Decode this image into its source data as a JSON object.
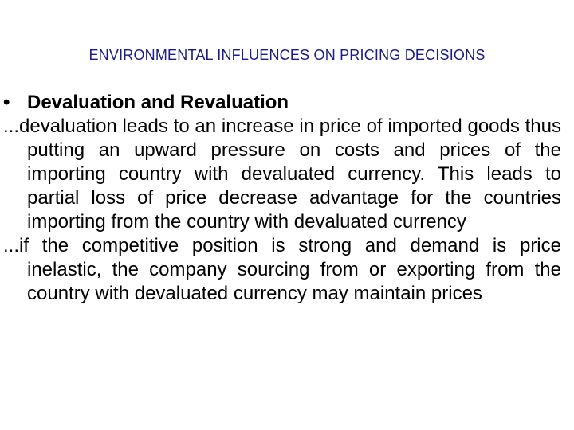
{
  "slide": {
    "title": "ENVIRONMENTAL INFLUENCES ON PRICING DECISIONS",
    "bullet_symbol": "•",
    "bullet_heading": "Devaluation and Revaluation",
    "paragraphs": [
      "...devaluation leads to an increase in price of imported goods thus putting an upward pressure on costs and prices of the importing country with devaluated currency. This leads to partial loss of price decrease advantage for the countries importing from the country with devaluated currency",
      "...if the competitive position is strong and demand is price inelastic, the company sourcing from or exporting from the country with devaluated currency may maintain prices"
    ]
  }
}
